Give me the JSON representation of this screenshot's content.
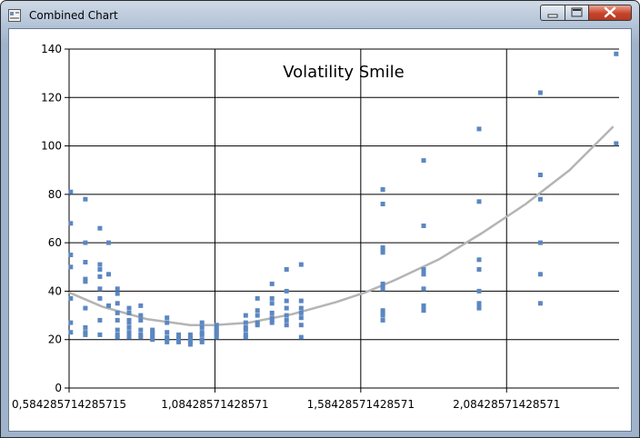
{
  "window": {
    "title": "Combined Chart"
  },
  "icons": {
    "app": "app-icon",
    "minimize": "minimize-icon",
    "maximize": "maximize-icon",
    "close": "close-icon"
  },
  "colors": {
    "points": "#5b87c1",
    "curve": "#b4b4b4",
    "close_button": "#c7432a"
  },
  "chart_data": {
    "type": "scatter",
    "title": "Volatility Smile",
    "xlabel": "",
    "ylabel": "",
    "xlim": [
      0.584285714285715,
      2.47
    ],
    "ylim": [
      0,
      140
    ],
    "grid": true,
    "y_ticks": [
      "0",
      "20",
      "40",
      "60",
      "80",
      "100",
      "120",
      "140"
    ],
    "x_ticks": [
      {
        "value": 0.584285714285715,
        "label": "0,584285714285715"
      },
      {
        "value": 1.08428571428571,
        "label": "1,08428571428571"
      },
      {
        "value": 1.58428571428571,
        "label": "1,58428571428571"
      },
      {
        "value": 2.08428571428571,
        "label": "2,08428571428571"
      }
    ],
    "series": [
      {
        "type": "scatter",
        "points": [
          [
            0.59,
            81
          ],
          [
            0.59,
            68
          ],
          [
            0.59,
            55
          ],
          [
            0.59,
            50
          ],
          [
            0.59,
            37
          ],
          [
            0.59,
            27
          ],
          [
            0.59,
            23
          ],
          [
            0.64,
            78
          ],
          [
            0.64,
            60
          ],
          [
            0.64,
            52
          ],
          [
            0.64,
            45
          ],
          [
            0.64,
            44
          ],
          [
            0.64,
            33
          ],
          [
            0.64,
            25
          ],
          [
            0.64,
            23
          ],
          [
            0.64,
            22
          ],
          [
            0.69,
            66
          ],
          [
            0.69,
            51
          ],
          [
            0.69,
            49
          ],
          [
            0.69,
            46
          ],
          [
            0.69,
            41
          ],
          [
            0.69,
            37
          ],
          [
            0.69,
            28
          ],
          [
            0.69,
            22
          ],
          [
            0.72,
            60
          ],
          [
            0.72,
            47
          ],
          [
            0.72,
            34
          ],
          [
            0.75,
            41
          ],
          [
            0.75,
            39
          ],
          [
            0.75,
            35
          ],
          [
            0.75,
            31
          ],
          [
            0.75,
            28
          ],
          [
            0.75,
            24
          ],
          [
            0.75,
            22
          ],
          [
            0.75,
            21
          ],
          [
            0.79,
            33
          ],
          [
            0.79,
            31
          ],
          [
            0.79,
            28
          ],
          [
            0.79,
            27
          ],
          [
            0.79,
            25
          ],
          [
            0.79,
            23
          ],
          [
            0.79,
            22
          ],
          [
            0.79,
            21
          ],
          [
            0.83,
            34
          ],
          [
            0.83,
            30
          ],
          [
            0.83,
            28
          ],
          [
            0.83,
            24
          ],
          [
            0.83,
            22
          ],
          [
            0.83,
            21
          ],
          [
            0.87,
            24
          ],
          [
            0.87,
            23
          ],
          [
            0.87,
            22
          ],
          [
            0.87,
            21
          ],
          [
            0.87,
            20
          ],
          [
            0.92,
            29
          ],
          [
            0.92,
            27
          ],
          [
            0.92,
            23
          ],
          [
            0.92,
            21
          ],
          [
            0.92,
            20
          ],
          [
            0.92,
            19
          ],
          [
            0.96,
            22
          ],
          [
            0.96,
            21
          ],
          [
            0.96,
            20
          ],
          [
            0.96,
            19
          ],
          [
            1.0,
            22
          ],
          [
            1.0,
            21
          ],
          [
            1.0,
            20
          ],
          [
            1.0,
            19
          ],
          [
            1.0,
            18
          ],
          [
            1.04,
            27
          ],
          [
            1.04,
            25
          ],
          [
            1.04,
            23
          ],
          [
            1.04,
            22
          ],
          [
            1.04,
            20
          ],
          [
            1.04,
            19
          ],
          [
            1.09,
            26
          ],
          [
            1.09,
            25
          ],
          [
            1.09,
            24
          ],
          [
            1.09,
            23
          ],
          [
            1.09,
            22
          ],
          [
            1.09,
            21
          ],
          [
            1.19,
            30
          ],
          [
            1.19,
            27
          ],
          [
            1.19,
            25
          ],
          [
            1.19,
            24
          ],
          [
            1.19,
            22
          ],
          [
            1.19,
            21
          ],
          [
            1.23,
            37
          ],
          [
            1.23,
            32
          ],
          [
            1.23,
            30
          ],
          [
            1.23,
            27
          ],
          [
            1.23,
            26
          ],
          [
            1.28,
            43
          ],
          [
            1.28,
            37
          ],
          [
            1.28,
            35
          ],
          [
            1.28,
            31
          ],
          [
            1.28,
            29
          ],
          [
            1.28,
            28
          ],
          [
            1.28,
            27
          ],
          [
            1.33,
            49
          ],
          [
            1.33,
            40
          ],
          [
            1.33,
            36
          ],
          [
            1.33,
            33
          ],
          [
            1.33,
            30
          ],
          [
            1.33,
            28
          ],
          [
            1.33,
            26
          ],
          [
            1.38,
            51
          ],
          [
            1.38,
            36
          ],
          [
            1.38,
            33
          ],
          [
            1.38,
            31
          ],
          [
            1.38,
            29
          ],
          [
            1.38,
            26
          ],
          [
            1.38,
            21
          ],
          [
            1.66,
            82
          ],
          [
            1.66,
            76
          ],
          [
            1.66,
            58
          ],
          [
            1.66,
            57
          ],
          [
            1.66,
            56
          ],
          [
            1.66,
            43
          ],
          [
            1.66,
            42
          ],
          [
            1.66,
            41
          ],
          [
            1.66,
            32
          ],
          [
            1.66,
            31
          ],
          [
            1.66,
            30
          ],
          [
            1.66,
            28
          ],
          [
            1.8,
            94
          ],
          [
            1.8,
            67
          ],
          [
            1.8,
            49
          ],
          [
            1.8,
            48
          ],
          [
            1.8,
            47
          ],
          [
            1.8,
            41
          ],
          [
            1.8,
            34
          ],
          [
            1.8,
            33
          ],
          [
            1.8,
            32
          ],
          [
            1.99,
            107
          ],
          [
            1.99,
            77
          ],
          [
            1.99,
            53
          ],
          [
            1.99,
            49
          ],
          [
            1.99,
            40
          ],
          [
            1.99,
            35
          ],
          [
            1.99,
            34
          ],
          [
            1.99,
            33
          ],
          [
            2.2,
            122
          ],
          [
            2.2,
            88
          ],
          [
            2.2,
            78
          ],
          [
            2.2,
            60
          ],
          [
            2.2,
            47
          ],
          [
            2.2,
            35
          ],
          [
            2.46,
            138
          ],
          [
            2.46,
            101
          ]
        ]
      },
      {
        "type": "line",
        "points": [
          [
            0.584,
            39.5
          ],
          [
            0.7,
            33.5
          ],
          [
            0.85,
            28.5
          ],
          [
            1.0,
            26
          ],
          [
            1.084,
            26
          ],
          [
            1.2,
            27
          ],
          [
            1.35,
            30.5
          ],
          [
            1.5,
            35.5
          ],
          [
            1.6,
            39.5
          ],
          [
            1.7,
            44.5
          ],
          [
            1.85,
            53
          ],
          [
            2.0,
            64
          ],
          [
            2.15,
            76
          ],
          [
            2.3,
            90
          ],
          [
            2.45,
            108
          ]
        ]
      }
    ]
  }
}
